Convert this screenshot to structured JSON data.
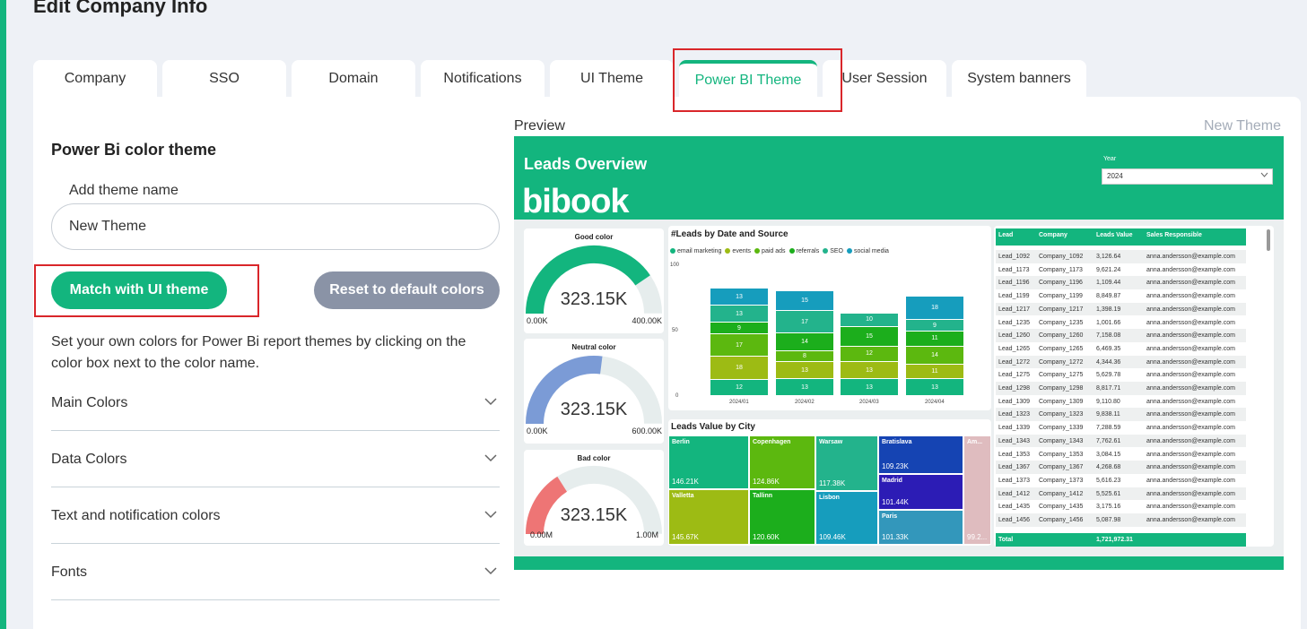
{
  "page": {
    "title": "Edit Company Info"
  },
  "tabs": [
    "Company",
    "SSO",
    "Domain",
    "Notifications",
    "UI Theme",
    "Power BI Theme",
    "User Session",
    "System banners"
  ],
  "active_tab": "Power BI Theme",
  "form": {
    "section_title": "Power Bi color theme",
    "theme_name_label": "Add theme name",
    "theme_name_value": "New Theme",
    "match_button": "Match with UI theme",
    "reset_button": "Reset to default colors",
    "description": "Set your own colors for Power Bi report themes by clicking on the color box next to the color name.",
    "accordions": [
      "Main Colors",
      "Data Colors",
      "Text and notification colors",
      "Fonts"
    ]
  },
  "preview": {
    "label": "Preview",
    "theme_name": "New Theme",
    "report": {
      "title": "Leads Overview",
      "logo": "bibook",
      "year_label": "Year",
      "year_value": "2024",
      "gauges": [
        {
          "name": "Good color",
          "value": "323.15K",
          "min": "0.00K",
          "max": "400.00K",
          "color": "#13b57e",
          "fill": 0.81
        },
        {
          "name": "Neutral color",
          "value": "323.15K",
          "min": "0.00K",
          "max": "600.00K",
          "color": "#7b9bd6",
          "fill": 0.54
        },
        {
          "name": "Bad color",
          "value": "323.15K",
          "min": "0.00M",
          "max": "1.00M",
          "color": "#ee7575",
          "fill": 0.32
        }
      ],
      "bar_chart": {
        "title": "#Leads by Date and Source",
        "legend": [
          {
            "name": "email marketing",
            "color": "#13b57e"
          },
          {
            "name": "events",
            "color": "#9dbb14"
          },
          {
            "name": "paid ads",
            "color": "#5cb80f"
          },
          {
            "name": "referrals",
            "color": "#1cae1c"
          },
          {
            "name": "SEO",
            "color": "#23b38c"
          },
          {
            "name": "social media",
            "color": "#169dbd"
          }
        ],
        "yticks": [
          "100",
          "50",
          "0"
        ],
        "categories": [
          "2024/01",
          "2024/02",
          "2024/03",
          "2024/04"
        ],
        "series": [
          {
            "name": "email marketing",
            "color": "#13b57e",
            "values": [
              12,
              13,
              13,
              13
            ]
          },
          {
            "name": "events",
            "color": "#9dbb14",
            "values": [
              18,
              13,
              13,
              11
            ]
          },
          {
            "name": "paid ads",
            "color": "#5cb80f",
            "values": [
              17,
              8,
              12,
              14
            ]
          },
          {
            "name": "referrals",
            "color": "#1cae1c",
            "values": [
              9,
              14,
              15,
              11
            ]
          },
          {
            "name": "SEO",
            "color": "#23b38c",
            "values": [
              13,
              17,
              10,
              9
            ]
          },
          {
            "name": "social media",
            "color": "#169dbd",
            "values": [
              13,
              15,
              0,
              18
            ]
          }
        ],
        "ylim": [
          0,
          100
        ]
      },
      "treemap": {
        "title": "Leads Value by City",
        "cells": [
          {
            "name": "Berlin",
            "value": "146.21K",
            "color": "#13b57e"
          },
          {
            "name": "Copenhagen",
            "value": "124.86K",
            "color": "#5cb80f"
          },
          {
            "name": "Warsaw",
            "value": "117.38K",
            "color": "#23b38c"
          },
          {
            "name": "Bratislava",
            "value": "109.23K",
            "color": "#1544b3"
          },
          {
            "name": "Am...",
            "value": "99.2...",
            "color": "#dfbcbf"
          },
          {
            "name": "Valletta",
            "value": "145.67K",
            "color": "#9dbb14"
          },
          {
            "name": "Tallinn",
            "value": "120.60K",
            "color": "#1cae1c"
          },
          {
            "name": "Lisbon",
            "value": "109.46K",
            "color": "#169dbd"
          },
          {
            "name": "Madrid",
            "value": "101.44K",
            "color": "#2c1cb5"
          },
          {
            "name": "Paris",
            "value": "101.33K",
            "color": "#3397bb"
          }
        ]
      },
      "table": {
        "headers": [
          "Lead",
          "Company",
          "Leads Value",
          "Sales Responsible"
        ],
        "rows": [
          [
            "Lead_1092",
            "Company_1092",
            "3,126.64",
            "anna.andersson@example.com"
          ],
          [
            "Lead_1173",
            "Company_1173",
            "9,621.24",
            "anna.andersson@example.com"
          ],
          [
            "Lead_1196",
            "Company_1196",
            "1,109.44",
            "anna.andersson@example.com"
          ],
          [
            "Lead_1199",
            "Company_1199",
            "8,849.87",
            "anna.andersson@example.com"
          ],
          [
            "Lead_1217",
            "Company_1217",
            "1,398.19",
            "anna.andersson@example.com"
          ],
          [
            "Lead_1235",
            "Company_1235",
            "1,001.66",
            "anna.andersson@example.com"
          ],
          [
            "Lead_1260",
            "Company_1260",
            "7,158.08",
            "anna.andersson@example.com"
          ],
          [
            "Lead_1265",
            "Company_1265",
            "6,469.35",
            "anna.andersson@example.com"
          ],
          [
            "Lead_1272",
            "Company_1272",
            "4,344.36",
            "anna.andersson@example.com"
          ],
          [
            "Lead_1275",
            "Company_1275",
            "5,629.78",
            "anna.andersson@example.com"
          ],
          [
            "Lead_1298",
            "Company_1298",
            "8,817.71",
            "anna.andersson@example.com"
          ],
          [
            "Lead_1309",
            "Company_1309",
            "9,110.80",
            "anna.andersson@example.com"
          ],
          [
            "Lead_1323",
            "Company_1323",
            "9,838.11",
            "anna.andersson@example.com"
          ],
          [
            "Lead_1339",
            "Company_1339",
            "7,288.59",
            "anna.andersson@example.com"
          ],
          [
            "Lead_1343",
            "Company_1343",
            "7,762.61",
            "anna.andersson@example.com"
          ],
          [
            "Lead_1353",
            "Company_1353",
            "3,084.15",
            "anna.andersson@example.com"
          ],
          [
            "Lead_1367",
            "Company_1367",
            "4,268.68",
            "anna.andersson@example.com"
          ],
          [
            "Lead_1373",
            "Company_1373",
            "5,616.23",
            "anna.andersson@example.com"
          ],
          [
            "Lead_1412",
            "Company_1412",
            "5,525.61",
            "anna.andersson@example.com"
          ],
          [
            "Lead_1435",
            "Company_1435",
            "3,175.16",
            "anna.andersson@example.com"
          ],
          [
            "Lead_1456",
            "Company_1456",
            "5,087.98",
            "anna.andersson@example.com"
          ]
        ],
        "total_label": "Total",
        "total_value": "1,721,972.31"
      }
    }
  },
  "colors": {
    "accent": "#13b57e",
    "reset_button": "#8a93a6",
    "highlight_box": "#d9262a"
  }
}
